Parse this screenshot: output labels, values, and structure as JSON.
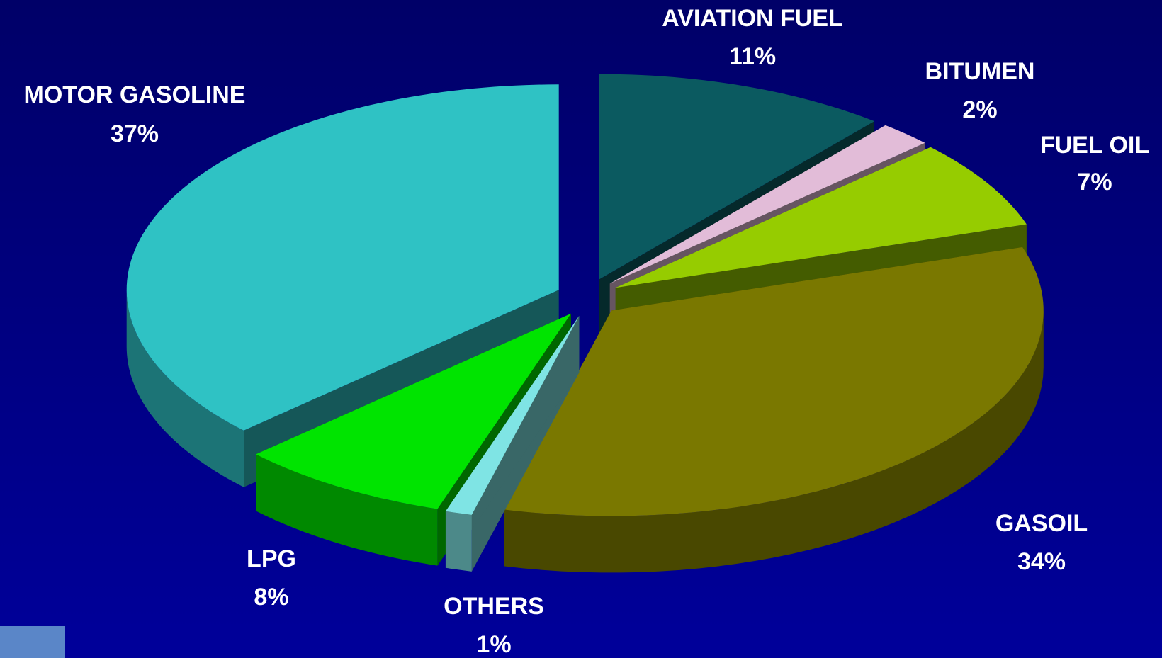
{
  "chart_data": {
    "type": "pie3d",
    "categories": [
      "AVIATION FUEL",
      "BITUMEN",
      "FUEL OIL",
      "GASOIL",
      "OTHERS",
      "LPG",
      "MOTOR GASOLINE"
    ],
    "values": [
      11,
      2,
      7,
      34,
      1,
      8,
      37
    ],
    "value_labels": [
      "11%",
      "2%",
      "7%",
      "34%",
      "1%",
      "8%",
      "37%"
    ],
    "colors": [
      "#0b5a60",
      "#e2bcd8",
      "#96cc00",
      "#7a7800",
      "#7fe4e4",
      "#00e400",
      "#2fc2c4"
    ]
  }
}
